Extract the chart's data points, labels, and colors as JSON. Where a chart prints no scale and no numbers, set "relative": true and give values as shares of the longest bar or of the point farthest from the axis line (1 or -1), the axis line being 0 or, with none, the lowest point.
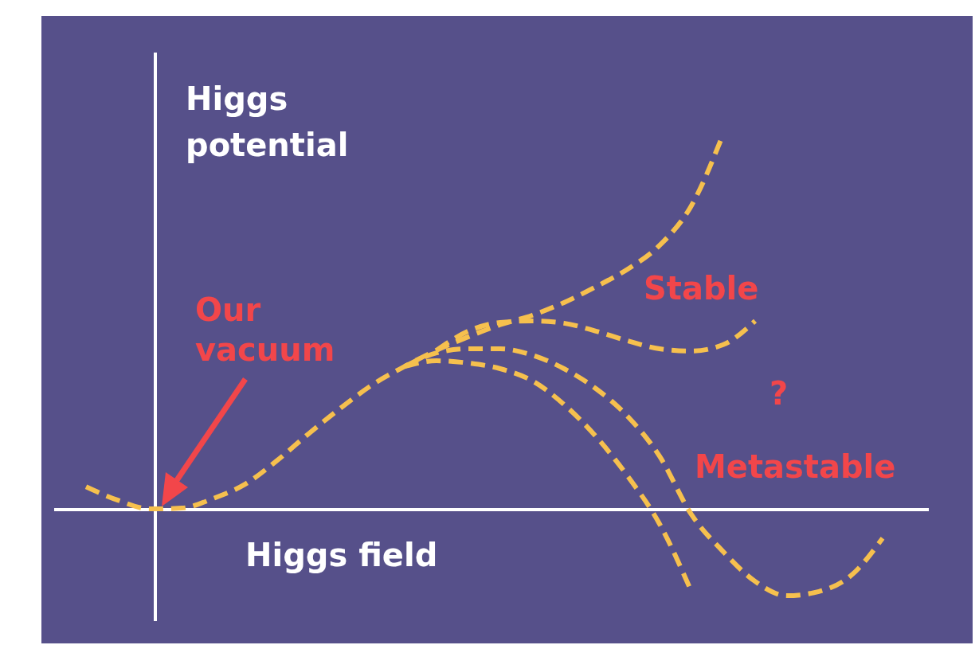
{
  "chart_data": {
    "type": "line",
    "relative": true,
    "ylabel": "Higgs potential",
    "xlabel": "Higgs field",
    "line_style": "dashed",
    "categories": [
      null,
      null,
      null,
      null,
      null,
      null,
      null,
      null,
      null,
      null,
      null,
      null,
      null,
      null,
      null,
      null,
      null,
      null,
      null,
      null,
      null,
      null,
      null,
      null,
      null,
      null
    ],
    "series": [
      {
        "color": "#f6c04e",
        "values": [
          0.061,
          0.025,
          0.002,
          0.004,
          0.03,
          0.068,
          0.131,
          0.203,
          0.271,
          0.333,
          0.381,
          0.424,
          0.46,
          0.492,
          0.517,
          0.551,
          0.593,
          0.64,
          0.703,
          0.809,
          1,
          null,
          null,
          null,
          null,
          null
        ]
      },
      {
        "color": "#f6c04e",
        "values": [
          null,
          null,
          null,
          null,
          null,
          null,
          null,
          null,
          null,
          null,
          null,
          0.424,
          0.475,
          0.498,
          0.502,
          0.496,
          0.475,
          0.449,
          0.428,
          0.422,
          0.439,
          0.502,
          null,
          null,
          null,
          null
        ]
      },
      {
        "color": "#f6c04e",
        "values": [
          null,
          null,
          null,
          null,
          null,
          null,
          null,
          null,
          null,
          null,
          0.381,
          0.417,
          0.428,
          0.428,
          0.411,
          0.375,
          0.322,
          0.248,
          0.142,
          -0.013,
          -0.112,
          -0.191,
          -0.229,
          -0.218,
          -0.176,
          -0.076
        ]
      },
      {
        "color": "#f6c04e",
        "values": [
          null,
          null,
          null,
          null,
          null,
          null,
          null,
          null,
          null,
          null,
          0.381,
          0.396,
          0.39,
          0.375,
          0.343,
          0.28,
          0.195,
          0.089,
          -0.038,
          -0.218,
          null,
          null,
          null,
          null,
          null,
          null
        ]
      }
    ],
    "annotations": [
      "Our vacuum",
      "Stable",
      "?",
      "Metastable"
    ]
  }
}
